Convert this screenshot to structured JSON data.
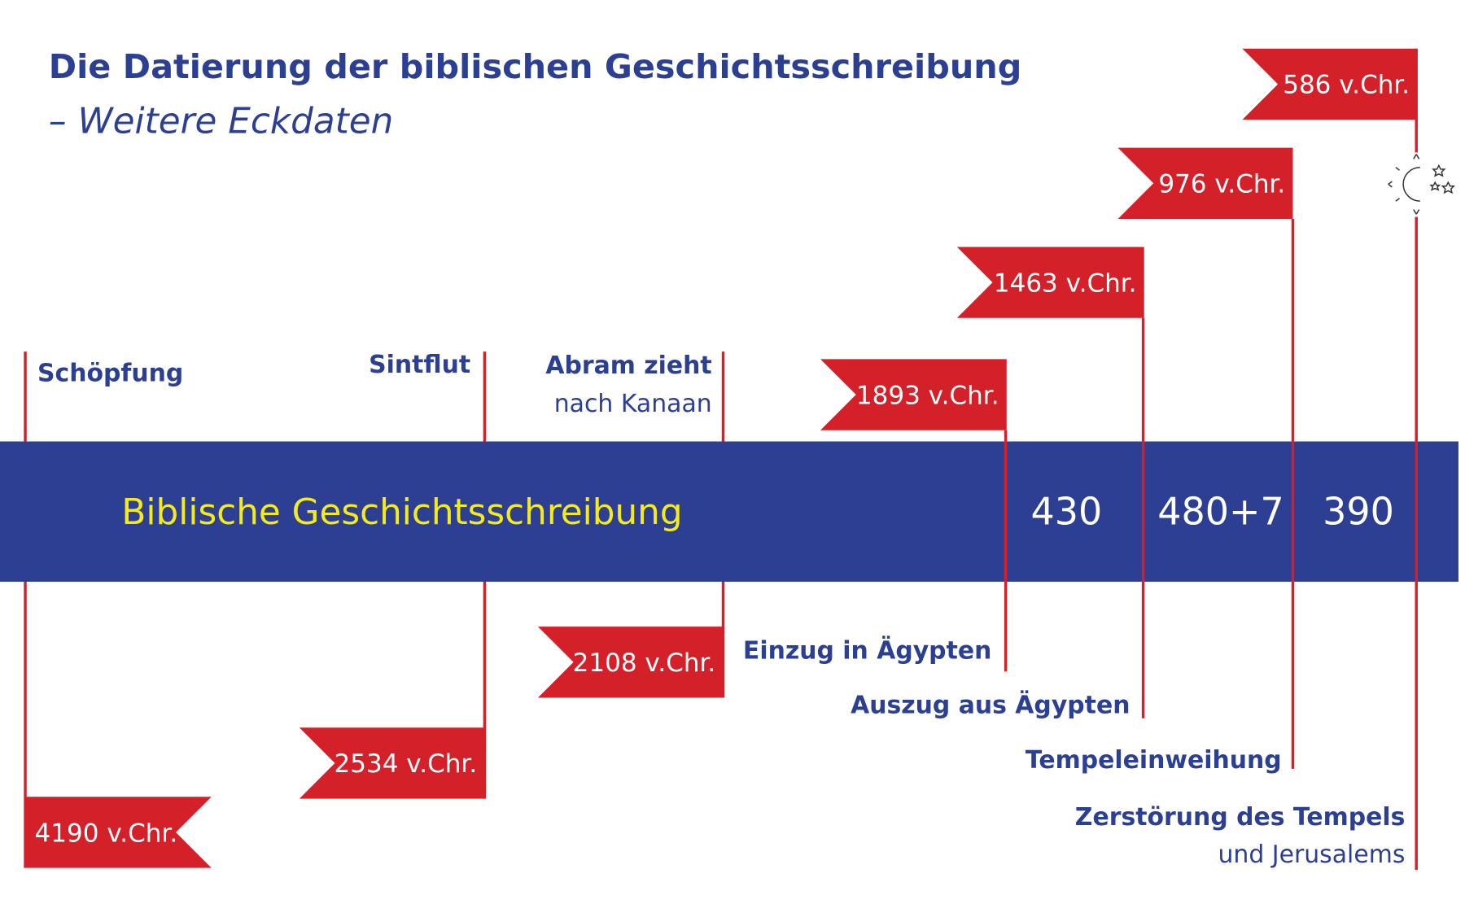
{
  "title": "Die Datierung der biblischen Geschichtsschreibung",
  "subtitle": "– Weitere Eckdaten",
  "band": {
    "label": "Biblische Geschichtsschreibung",
    "periods": [
      "430",
      "480+7",
      "390"
    ]
  },
  "events": [
    {
      "label": [
        "Schöpfung"
      ],
      "date": "4190 v.Chr."
    },
    {
      "label": [
        "Sintflut"
      ],
      "date": "2534 v.Chr."
    },
    {
      "label": [
        "Abram zieht",
        "nach Kanaan"
      ],
      "date": "2108 v.Chr."
    },
    {
      "label": [
        "Einzug in Ägypten"
      ],
      "date": "1893 v.Chr."
    },
    {
      "label": [
        "Auszug aus Ägypten"
      ],
      "date": "1463 v.Chr."
    },
    {
      "label": [
        "Tempeleinweihung"
      ],
      "date": "976 v.Chr."
    },
    {
      "label": [
        "Zerstörung des Tempels",
        "und Jerusalems"
      ],
      "date": "586 v.Chr."
    }
  ]
}
